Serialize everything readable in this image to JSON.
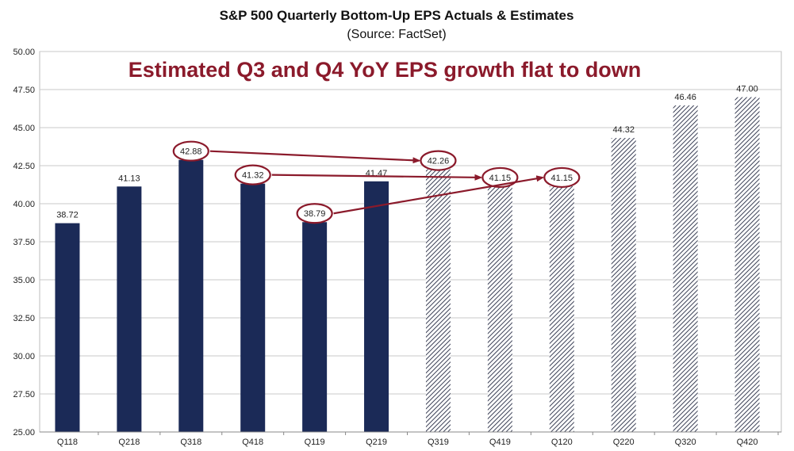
{
  "chart_data": {
    "type": "bar",
    "title": "S&P 500 Quarterly Bottom-Up EPS Actuals & Estimates",
    "subtitle": "(Source: FactSet)",
    "annotation": "Estimated Q3 and Q4 YoY EPS growth flat to down",
    "xlabel": "",
    "ylabel": "",
    "ylim": [
      25,
      50
    ],
    "yticks": [
      "25.00",
      "27.50",
      "30.00",
      "32.50",
      "35.00",
      "37.50",
      "40.00",
      "42.50",
      "45.00",
      "47.50",
      "50.00"
    ],
    "grid": true,
    "categories": [
      "Q118",
      "Q218",
      "Q318",
      "Q418",
      "Q119",
      "Q219",
      "Q319",
      "Q419",
      "Q120",
      "Q220",
      "Q320",
      "Q420"
    ],
    "values": [
      38.72,
      41.13,
      42.88,
      41.32,
      38.79,
      41.47,
      42.26,
      41.15,
      41.15,
      44.32,
      46.46,
      47.0
    ],
    "labels": [
      "38.72",
      "41.13",
      "42.88",
      "41.32",
      "38.79",
      "41.47",
      "42.26",
      "41.15",
      "41.15",
      "44.32",
      "46.46",
      "47.00"
    ],
    "series_kind": [
      "actual",
      "actual",
      "actual",
      "actual",
      "actual",
      "actual",
      "estimate",
      "estimate",
      "estimate",
      "estimate",
      "estimate",
      "estimate"
    ],
    "circled": [
      2,
      3,
      4,
      6,
      7,
      8
    ],
    "arrows": [
      {
        "from": "Q318",
        "to": "Q319"
      },
      {
        "from": "Q418",
        "to": "Q419"
      },
      {
        "from": "Q119",
        "to": "Q120"
      }
    ]
  },
  "colors": {
    "actual": "#1b2a57",
    "estimate_stripe": "#3a3f55",
    "annotation": "#8b1a2b",
    "grid": "#c8c8c8"
  }
}
